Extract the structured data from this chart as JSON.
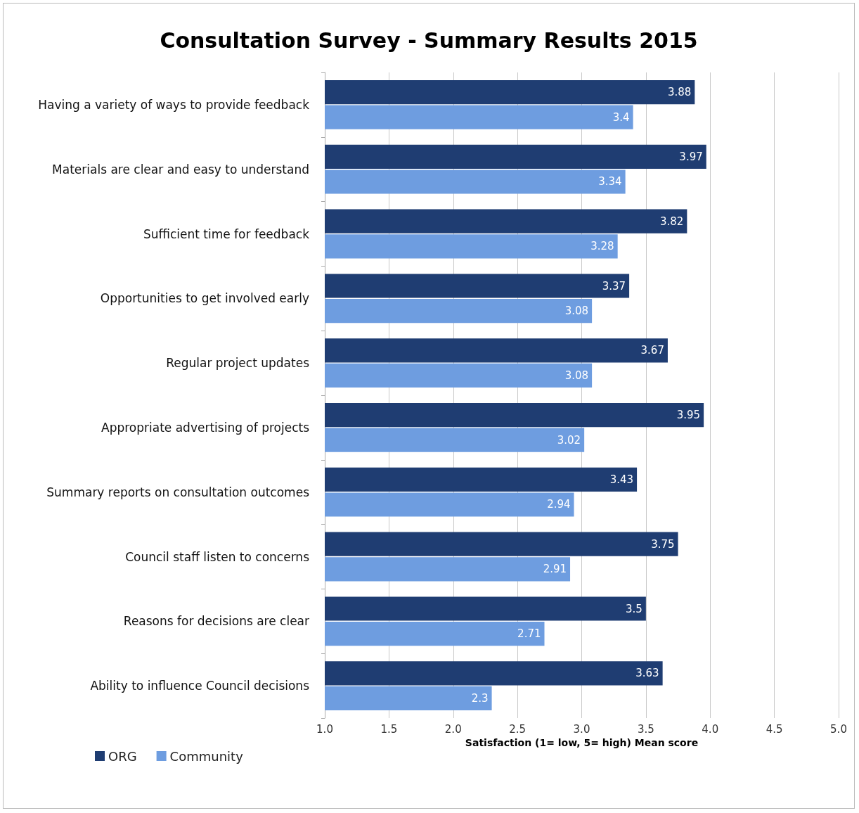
{
  "chart_data": {
    "type": "bar",
    "orientation": "horizontal",
    "title": "Consultation Survey - Summary Results 2015",
    "xlabel": "Satisfaction (1= low, 5= high) Mean score",
    "categories": [
      "Having a variety of ways to provide feedback",
      "Materials are clear and easy to understand",
      "Sufficient time for feedback",
      "Opportunities to get involved early",
      "Regular project updates",
      "Appropriate advertising of projects",
      "Summary reports on consultation outcomes",
      "Council staff listen to concerns",
      "Reasons for decisions are clear",
      "Ability to influence Council decisions"
    ],
    "series": [
      {
        "name": "ORG",
        "color": "#1f3d72",
        "values": [
          3.88,
          3.97,
          3.82,
          3.37,
          3.67,
          3.95,
          3.43,
          3.75,
          3.5,
          3.63
        ]
      },
      {
        "name": "Community",
        "color": "#6e9de0",
        "values": [
          3.4,
          3.34,
          3.28,
          3.08,
          3.08,
          3.02,
          2.94,
          2.91,
          2.71,
          2.3
        ]
      }
    ],
    "xlim": [
      1,
      5
    ],
    "xticks": [
      {
        "value": 1,
        "label": "1.0"
      },
      {
        "value": 1.5,
        "label": "1.5"
      },
      {
        "value": 2,
        "label": "2.0"
      },
      {
        "value": 2.5,
        "label": "2.5"
      },
      {
        "value": 3,
        "label": "3.0"
      },
      {
        "value": 3.5,
        "label": "3.5"
      },
      {
        "value": 4,
        "label": "4.0"
      },
      {
        "value": 4.5,
        "label": "4.5"
      },
      {
        "value": 5,
        "label": "5.0"
      }
    ],
    "grid": "x",
    "legend": "bottom left",
    "data_labels": true
  }
}
